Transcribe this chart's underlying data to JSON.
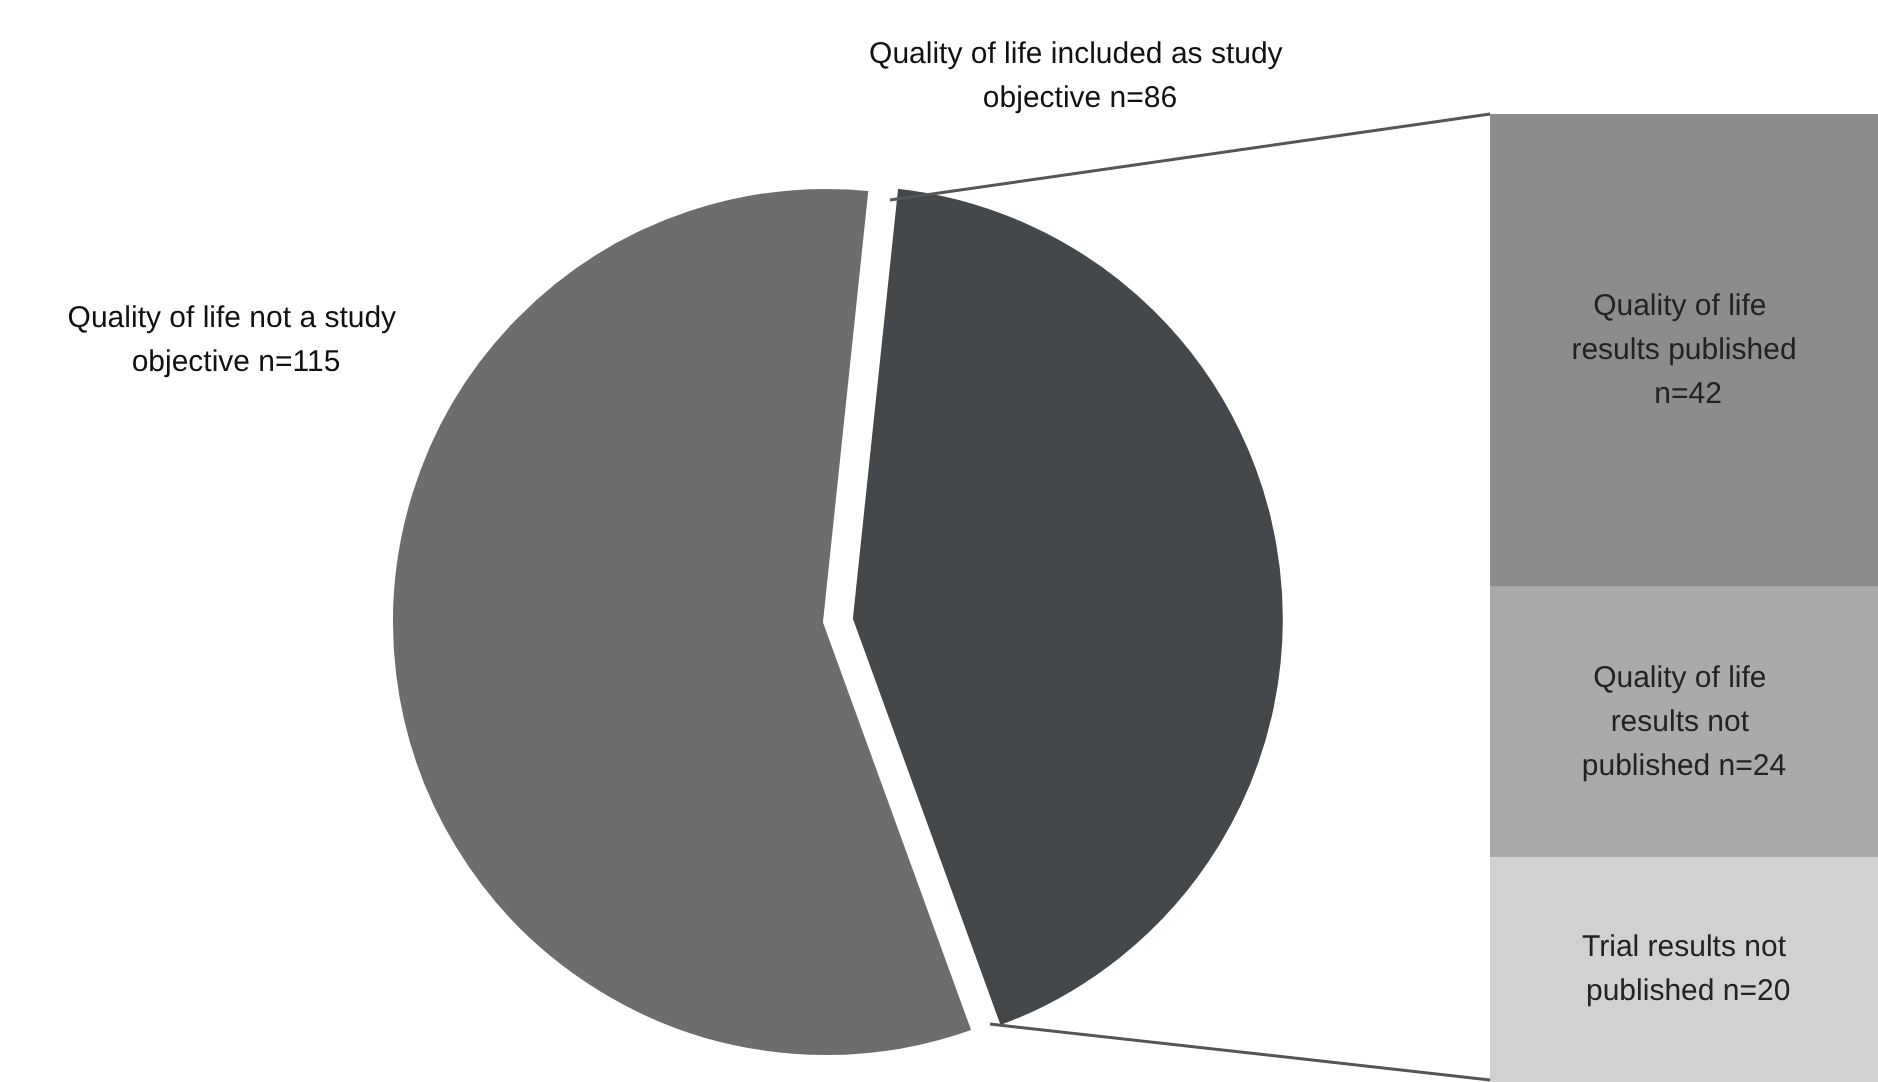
{
  "chart_data": [
    {
      "type": "pie",
      "categories": [
        "Quality of life included as study objective n=86",
        "Quality of life not a study objective n=115"
      ],
      "values": [
        86,
        115
      ],
      "colors": [
        "#45484a",
        "#6b6e6d"
      ]
    },
    {
      "type": "bar",
      "stacked": true,
      "categories": [
        null
      ],
      "series": [
        {
          "color": "#d0d1d0",
          "values": [
            20
          ],
          "value_labels": [
            "Trial results not published n=20"
          ]
        },
        {
          "color": "#a9abab",
          "values": [
            24
          ],
          "value_labels": [
            "Quality of life results not published n=24"
          ]
        },
        {
          "color": "#8a8c8d",
          "values": [
            42
          ],
          "value_labels": [
            "Quality of life results published n=42"
          ]
        }
      ]
    }
  ]
}
